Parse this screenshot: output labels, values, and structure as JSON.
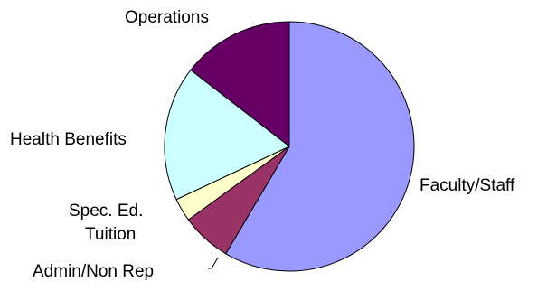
{
  "chart_data": {
    "type": "pie",
    "categories": [
      "Faculty/Staff",
      "Admin/Non Rep",
      "Spec. Ed. Tuition",
      "Health Benefits",
      "Operations"
    ],
    "values": [
      58.5,
      6.5,
      3.0,
      17.5,
      14.5
    ],
    "colors": [
      "#9999FF",
      "#993366",
      "#FFFFCC",
      "#CCFFFF",
      "#660066"
    ],
    "start_angle_deg": 0,
    "direction": "clockwise",
    "legend": "none",
    "title": "",
    "labels": {
      "faculty_staff": "Faculty/Staff",
      "admin_non_rep": "Admin/Non Rep",
      "spec_ed_line1": "Spec. Ed.",
      "spec_ed_line2": "Tuition",
      "health_benefits": "Health Benefits",
      "operations": "Operations"
    }
  }
}
